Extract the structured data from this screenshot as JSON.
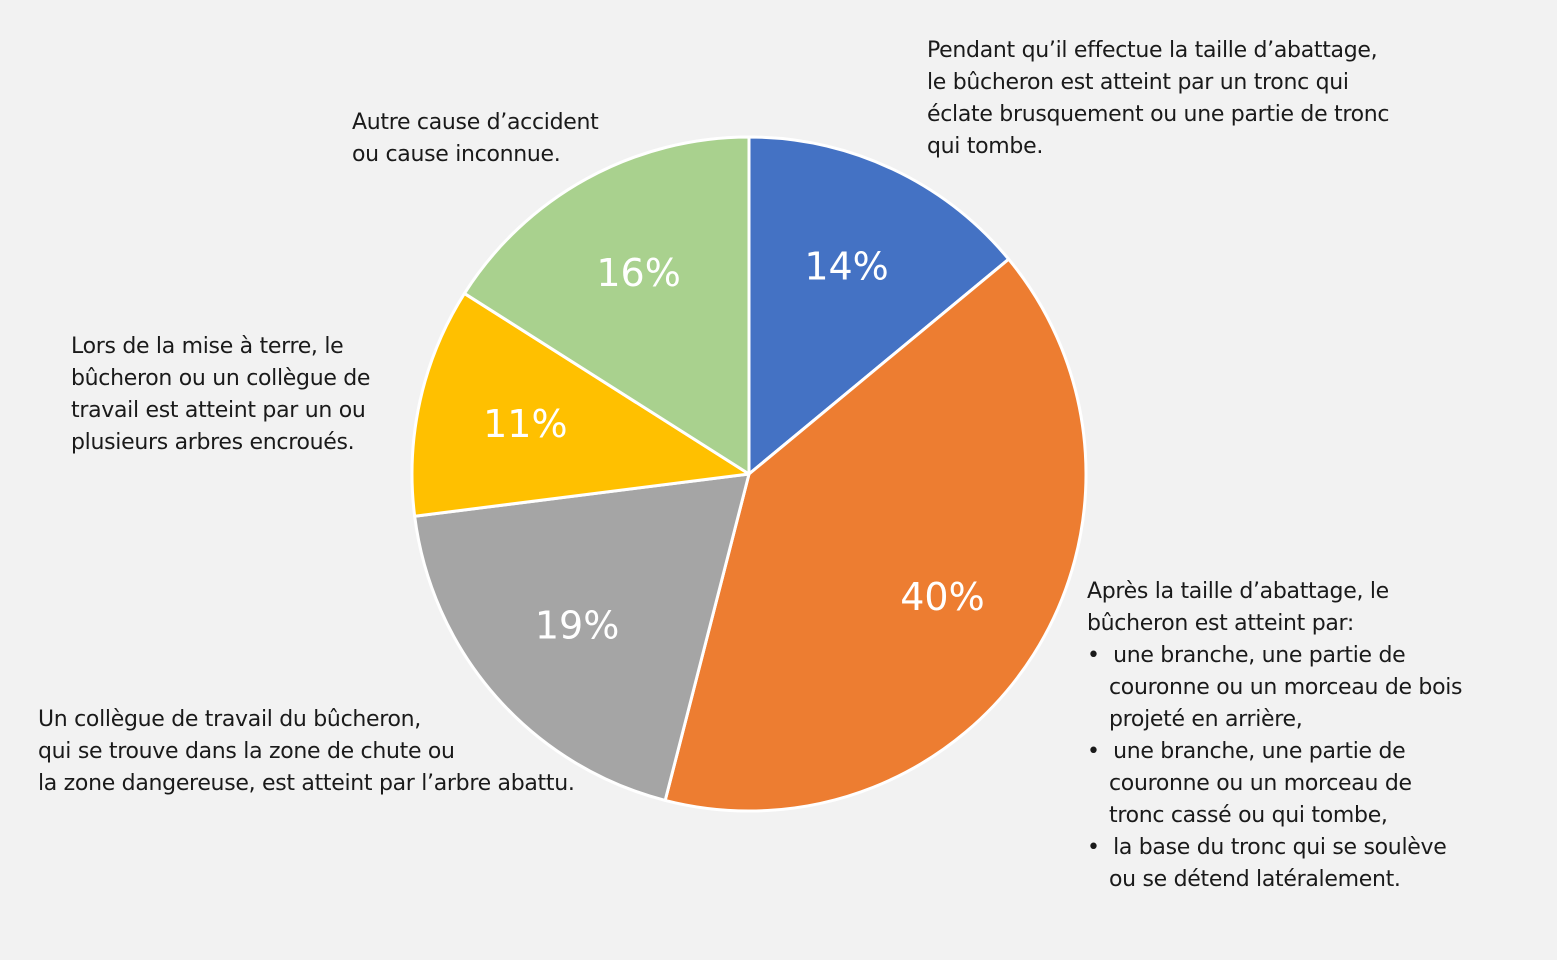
{
  "chart_data": {
    "type": "pie",
    "title": "",
    "slices": [
      {
        "value": 14,
        "label_text": "14%",
        "color": "#4472c4",
        "description": [
          "Pendant qu’il effectue la taille d’abattage,",
          "le bûcheron est atteint par un tronc qui",
          "éclate brusquement ou une partie de tronc",
          "qui tombe."
        ]
      },
      {
        "value": 40,
        "label_text": "40%",
        "color": "#ed7d31",
        "description": [
          "Après la taille d’abattage, le",
          "bûcheron est atteint par:"
        ],
        "bullets": [
          [
            "une branche, une partie de",
            "couronne ou un morceau de bois",
            "projeté en arrière,"
          ],
          [
            "une branche, une partie de",
            "couronne ou un morceau de",
            "tronc cassé ou qui tombe,"
          ],
          [
            "la base du tronc qui se soulève",
            "ou se détend latéralement."
          ]
        ]
      },
      {
        "value": 19,
        "label_text": "19%",
        "color": "#a5a5a5",
        "description": [
          "Un collègue de travail du bûcheron,",
          "qui se trouve dans la zone de chute ou",
          "la zone dangereuse, est atteint par l’arbre abattu."
        ]
      },
      {
        "value": 11,
        "label_text": "11%",
        "color": "#ffc000",
        "description": [
          "Lors de la mise à terre, le",
          "bûcheron ou un collègue de",
          "travail est atteint par un ou",
          "plusieurs arbres encroués."
        ]
      },
      {
        "value": 16,
        "label_text": "16%",
        "color": "#a9d18e",
        "description": [
          "Autre cause d’accident",
          "ou cause inconnue."
        ]
      }
    ],
    "start_angle_deg": 0,
    "direction": "clockwise",
    "legend": "none"
  }
}
